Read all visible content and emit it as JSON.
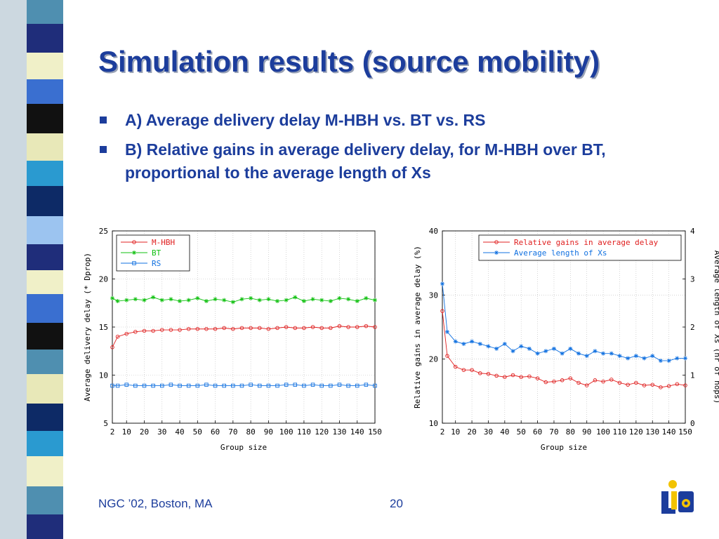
{
  "title": "Simulation results (source mobility)",
  "bullets": [
    {
      "text": "A) Average delivery delay M-HBH vs. BT vs. RS"
    },
    {
      "text": "B) Relative gains in average delivery delay, for M-HBH over BT, proportional to the average length of Xs"
    }
  ],
  "footer": {
    "left": "NGC ’02, Boston, MA",
    "page": "20"
  },
  "colors": {
    "title": "#1c3d9c",
    "mhbh": "#e02020",
    "bt": "#10c010",
    "rs": "#1070e0",
    "gain": "#e02020",
    "xs": "#1070e0"
  },
  "chart_data": [
    {
      "type": "line",
      "title": "",
      "xlabel": "Group size",
      "ylabel": "Average delivery delay (* Dprop)",
      "xlim": [
        2,
        150
      ],
      "ylim": [
        5,
        25
      ],
      "xticks": [
        "2",
        "10",
        "20",
        "30",
        "40",
        "50",
        "60",
        "70",
        "80",
        "90",
        "100",
        "110",
        "120",
        "130",
        "140",
        "150"
      ],
      "yticks": [
        "5",
        "10",
        "15",
        "20",
        "25"
      ],
      "grid": true,
      "legend": "top-left",
      "x": [
        2,
        5,
        10,
        15,
        20,
        25,
        30,
        35,
        40,
        45,
        50,
        55,
        60,
        65,
        70,
        75,
        80,
        85,
        90,
        95,
        100,
        105,
        110,
        115,
        120,
        125,
        130,
        135,
        140,
        145,
        150
      ],
      "series": [
        {
          "name": "M-HBH",
          "marker": "circle",
          "values": [
            12.9,
            14.0,
            14.3,
            14.5,
            14.6,
            14.6,
            14.7,
            14.7,
            14.7,
            14.8,
            14.8,
            14.8,
            14.8,
            14.9,
            14.8,
            14.9,
            14.9,
            14.9,
            14.8,
            14.9,
            15.0,
            14.9,
            14.9,
            15.0,
            14.9,
            14.9,
            15.1,
            15.0,
            15.0,
            15.1,
            15.0
          ]
        },
        {
          "name": "BT",
          "marker": "star",
          "values": [
            18.0,
            17.7,
            17.8,
            17.9,
            17.8,
            18.1,
            17.8,
            17.9,
            17.7,
            17.8,
            18.0,
            17.7,
            17.9,
            17.8,
            17.6,
            17.9,
            18.0,
            17.8,
            17.9,
            17.7,
            17.8,
            18.1,
            17.7,
            17.9,
            17.8,
            17.7,
            18.0,
            17.9,
            17.7,
            18.0,
            17.8
          ]
        },
        {
          "name": "RS",
          "marker": "square",
          "values": [
            8.9,
            8.9,
            9.0,
            8.9,
            8.9,
            8.9,
            8.9,
            9.0,
            8.9,
            8.9,
            8.9,
            9.0,
            8.9,
            8.9,
            8.9,
            8.9,
            9.0,
            8.9,
            8.9,
            8.9,
            9.0,
            9.0,
            8.9,
            9.0,
            8.9,
            8.9,
            9.0,
            8.9,
            8.9,
            9.0,
            8.9
          ]
        }
      ]
    },
    {
      "type": "line",
      "title": "",
      "xlabel": "Group size",
      "ylabel": "Relative gains in average delay (%)",
      "y2label": "Average length of Xs (nr of hops)",
      "xlim": [
        2,
        150
      ],
      "ylim": [
        10,
        40
      ],
      "y2lim": [
        0,
        4
      ],
      "xticks": [
        "2",
        "10",
        "20",
        "30",
        "40",
        "50",
        "60",
        "70",
        "80",
        "90",
        "100",
        "110",
        "120",
        "130",
        "140",
        "150"
      ],
      "yticks": [
        "10",
        "20",
        "30",
        "40"
      ],
      "y2ticks": [
        "0",
        "1",
        "2",
        "3",
        "4"
      ],
      "grid": true,
      "legend": "top-right",
      "x": [
        2,
        5,
        10,
        15,
        20,
        25,
        30,
        35,
        40,
        45,
        50,
        55,
        60,
        65,
        70,
        75,
        80,
        85,
        90,
        95,
        100,
        105,
        110,
        115,
        120,
        125,
        130,
        135,
        140,
        145,
        150
      ],
      "series": [
        {
          "name": "Relative gains in average delay",
          "marker": "circle",
          "axis": "left",
          "values": [
            27.5,
            20.5,
            18.8,
            18.3,
            18.3,
            17.8,
            17.7,
            17.4,
            17.2,
            17.5,
            17.2,
            17.3,
            17.0,
            16.4,
            16.5,
            16.7,
            17.0,
            16.3,
            15.9,
            16.7,
            16.5,
            16.8,
            16.3,
            16.0,
            16.3,
            15.9,
            16.0,
            15.6,
            15.8,
            16.1,
            15.9
          ]
        },
        {
          "name": "Average length of Xs",
          "marker": "star",
          "axis": "right",
          "values": [
            2.9,
            1.9,
            1.7,
            1.65,
            1.7,
            1.65,
            1.6,
            1.55,
            1.65,
            1.5,
            1.6,
            1.55,
            1.45,
            1.5,
            1.55,
            1.45,
            1.55,
            1.45,
            1.4,
            1.5,
            1.45,
            1.45,
            1.4,
            1.35,
            1.4,
            1.35,
            1.4,
            1.3,
            1.3,
            1.35,
            1.35
          ]
        }
      ]
    }
  ]
}
